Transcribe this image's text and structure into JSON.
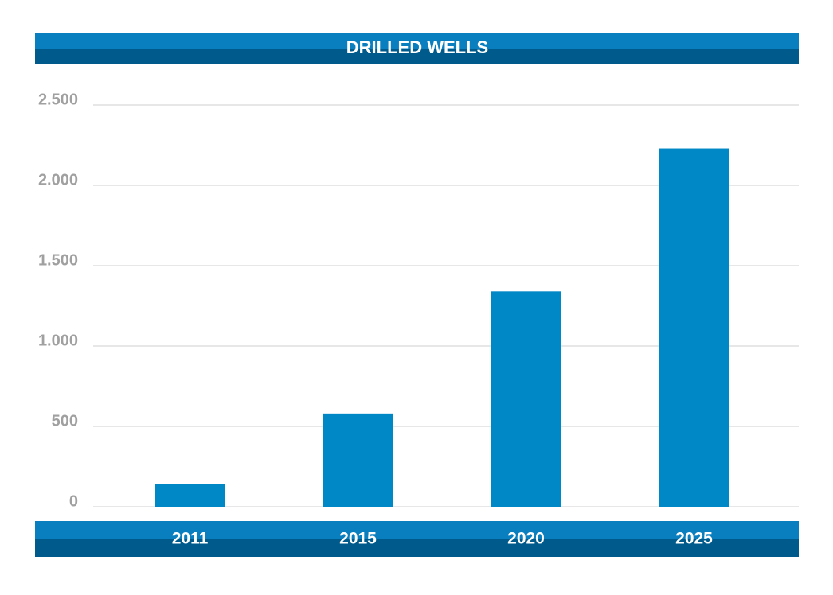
{
  "chart_data": {
    "type": "bar",
    "title": "DRILLED WELLS",
    "categories": [
      "2011",
      "2015",
      "2020",
      "2025"
    ],
    "values": [
      140,
      580,
      1340,
      2230
    ],
    "color": "#0088c6",
    "ylim": [
      0,
      2500
    ],
    "yticks": [
      0,
      500,
      {
        "value": 1000,
        "label": "1.000"
      },
      {
        "value": 1500,
        "label": "1.500"
      },
      {
        "value": 2000,
        "label": "2.000"
      },
      {
        "value": 2500,
        "label": "2.500"
      }
    ],
    "grid": true
  }
}
